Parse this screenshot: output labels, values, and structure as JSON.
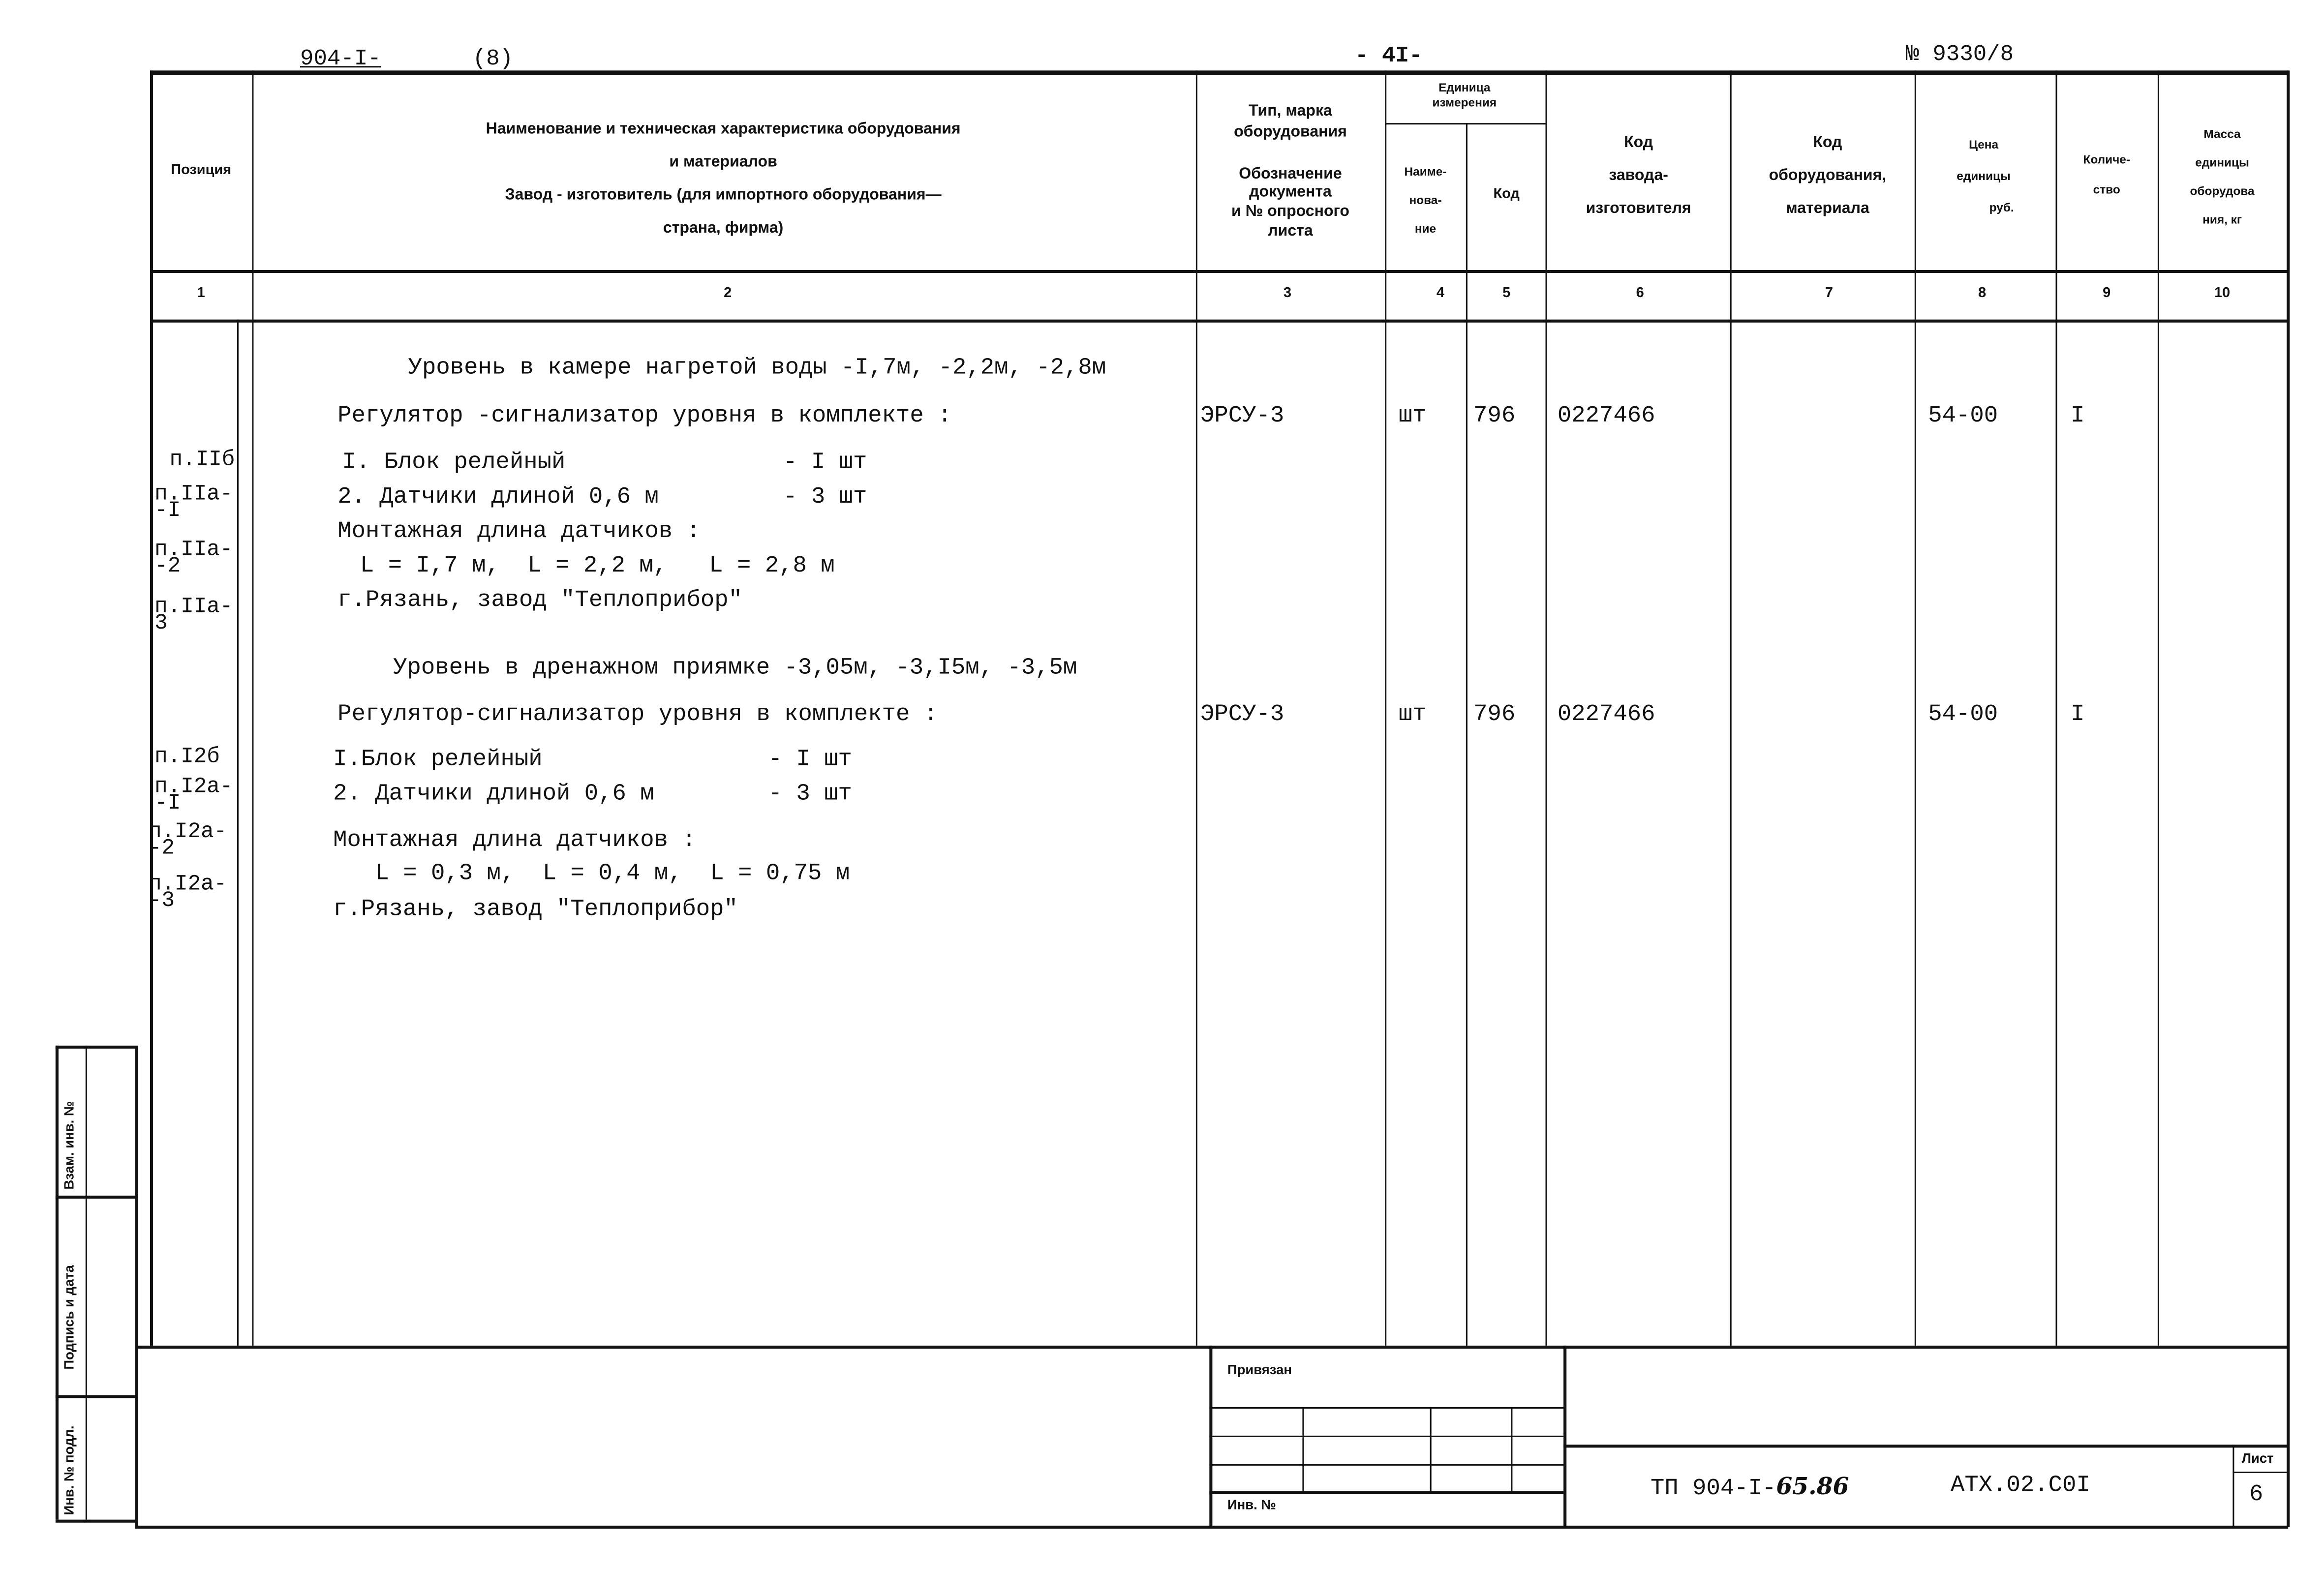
{
  "top": {
    "series": "904-I-",
    "part": "(8)",
    "page": "- 4I-",
    "album": "№ 9330/8"
  },
  "header": {
    "col1": "Позиция",
    "col2": [
      "Наименование и техническая характеристика оборудования",
      "и материалов",
      "Завод - изготовитель (для импортного оборудования—",
      "страна, фирма)"
    ],
    "col3": [
      "Тип, марка",
      "оборудования",
      "Обозначение",
      "документа",
      "и № опросного",
      "листа"
    ],
    "unit_group": [
      "Единица",
      "измерения"
    ],
    "col4": [
      "Наиме-",
      "нова-",
      "ние"
    ],
    "col5": "Код",
    "col6": [
      "Код",
      "завода-",
      "изготовителя"
    ],
    "col7": [
      "Код",
      "оборудования,",
      "материала"
    ],
    "col8": [
      "Цена",
      "единицы",
      "руб."
    ],
    "col9": [
      "Количе-",
      "ство"
    ],
    "col10": [
      "Масса",
      "единицы",
      "оборудова",
      "ния, кг"
    ],
    "numbers": [
      "1",
      "2",
      "3",
      "4",
      "5",
      "6",
      "7",
      "8",
      "9",
      "10"
    ]
  },
  "sections": [
    {
      "title": "Уровень в камере нагретой воды -I,7м, -2,2м, -2,8м",
      "name": "Регулятор -сигнализатор уровня в комплекте :",
      "type": "ЭРСУ-3",
      "unit": "шт",
      "unit_code": "796",
      "maker_code": "0227466",
      "price": "54-00",
      "qty": "I",
      "items": [
        {
          "pos": "п.IIб",
          "text": "I. Блок релейный",
          "qty": "- I шт"
        },
        {
          "pos": "п.IIа-\n-I",
          "text": "2. Датчики длиной 0,6 м",
          "qty": "- 3 шт"
        }
      ],
      "mount_label": "Монтажная длина датчиков :",
      "lengths": "L = I,7 м,  L = 2,2 м,   L = 2,8 м",
      "extra_pos": [
        "п.IIа-\n-2",
        "п.IIа-\n3"
      ],
      "factory": "г.Рязань, завод \"Теплоприбор\""
    },
    {
      "title": "Уровень в дренажном приямке -3,05м, -3,I5м, -3,5м",
      "name": "Регулятор-сигнализатор уровня в комплекте :",
      "type": "ЭРСУ-3",
      "unit": "шт",
      "unit_code": "796",
      "maker_code": "0227466",
      "price": "54-00",
      "qty": "I",
      "items": [
        {
          "pos": "п.I2б",
          "text": "I.Блок релейный",
          "qty": "- I шт"
        },
        {
          "pos": "п.I2а-\n-I",
          "text": "2. Датчики длиной 0,6 м",
          "qty": "- 3 шт"
        }
      ],
      "mount_label": "Монтажная длина датчиков :",
      "lengths": "L = 0,3 м,  L = 0,4 м,  L = 0,75 м",
      "extra_pos": [
        "п.I2а-\n-2",
        "п.I2а-\n-3"
      ],
      "factory": "г.Рязань, завод \"Теплоприбор\""
    }
  ],
  "stamp": {
    "replaced_inv": "Взам. инв. №",
    "signature_date": "Подпись и дата",
    "orig_inv": "Инв. № подл."
  },
  "title_block": {
    "attached": "Привязан",
    "inv": "Инв. №",
    "doc_code": "ТП 904-I-",
    "doc_code_hand": "65.86",
    "drawing": "АТХ.02.С0I",
    "sheet_label": "Лист",
    "sheet": "6"
  }
}
